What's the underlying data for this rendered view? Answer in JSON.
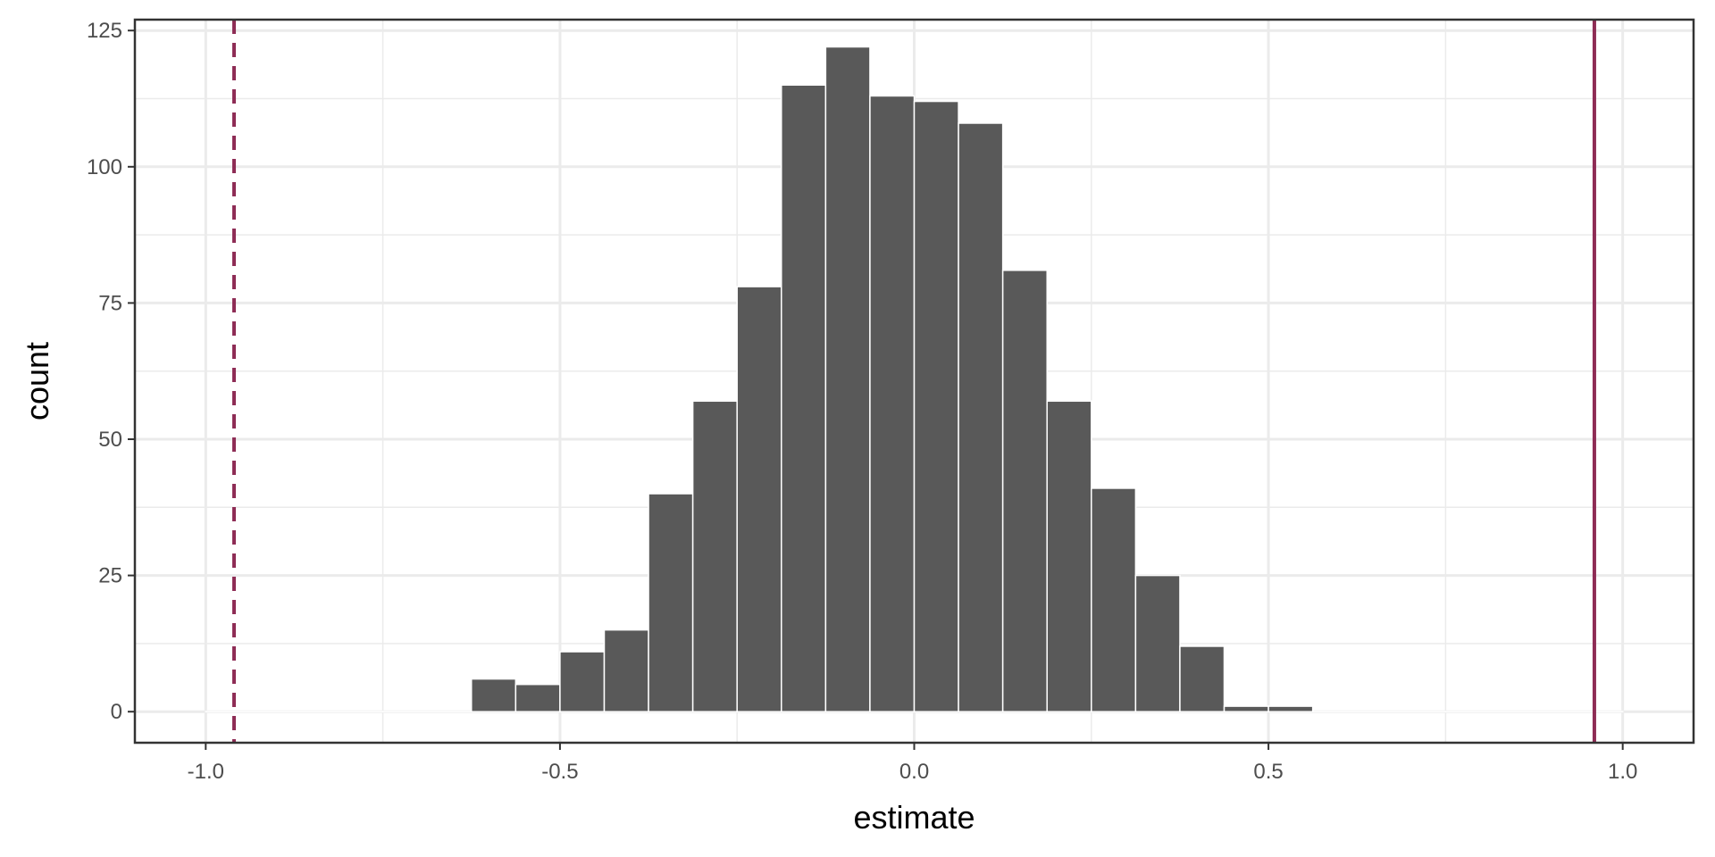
{
  "chart_data": {
    "type": "bar",
    "title": "",
    "xlabel": "estimate",
    "ylabel": "count",
    "xlim": [
      -1.1,
      1.1
    ],
    "ylim": [
      -5.7,
      127
    ],
    "x_ticks": [
      -1.0,
      -0.5,
      0.0,
      0.5,
      1.0
    ],
    "x_tick_labels": [
      "-1.0",
      "-0.5",
      "0.0",
      "0.5",
      "1.0"
    ],
    "y_ticks": [
      0,
      25,
      50,
      75,
      100,
      125
    ],
    "y_tick_labels": [
      "0",
      "25",
      "50",
      "75",
      "100",
      "125"
    ],
    "grid": true,
    "bins": [
      {
        "x0": -1.0,
        "x1": -0.9375,
        "count": 0
      },
      {
        "x0": -0.9375,
        "x1": -0.875,
        "count": 0
      },
      {
        "x0": -0.875,
        "x1": -0.8125,
        "count": 0
      },
      {
        "x0": -0.8125,
        "x1": -0.75,
        "count": 0
      },
      {
        "x0": -0.75,
        "x1": -0.6875,
        "count": 0
      },
      {
        "x0": -0.6875,
        "x1": -0.625,
        "count": 0
      },
      {
        "x0": -0.625,
        "x1": -0.5625,
        "count": 6
      },
      {
        "x0": -0.5625,
        "x1": -0.5,
        "count": 5
      },
      {
        "x0": -0.5,
        "x1": -0.4375,
        "count": 11
      },
      {
        "x0": -0.4375,
        "x1": -0.375,
        "count": 15
      },
      {
        "x0": -0.375,
        "x1": -0.3125,
        "count": 40
      },
      {
        "x0": -0.3125,
        "x1": -0.25,
        "count": 57
      },
      {
        "x0": -0.25,
        "x1": -0.1875,
        "count": 78
      },
      {
        "x0": -0.1875,
        "x1": -0.125,
        "count": 115
      },
      {
        "x0": -0.125,
        "x1": -0.0625,
        "count": 122
      },
      {
        "x0": -0.0625,
        "x1": 0.0,
        "count": 113
      },
      {
        "x0": 0.0,
        "x1": 0.0625,
        "count": 112
      },
      {
        "x0": 0.0625,
        "x1": 0.125,
        "count": 108
      },
      {
        "x0": 0.125,
        "x1": 0.1875,
        "count": 81
      },
      {
        "x0": 0.1875,
        "x1": 0.25,
        "count": 57
      },
      {
        "x0": 0.25,
        "x1": 0.3125,
        "count": 41
      },
      {
        "x0": 0.3125,
        "x1": 0.375,
        "count": 25
      },
      {
        "x0": 0.375,
        "x1": 0.4375,
        "count": 12
      },
      {
        "x0": 0.4375,
        "x1": 0.5,
        "count": 1
      },
      {
        "x0": 0.5,
        "x1": 0.5625,
        "count": 1
      },
      {
        "x0": 0.5625,
        "x1": 0.625,
        "count": 0
      },
      {
        "x0": 0.625,
        "x1": 0.6875,
        "count": 0
      },
      {
        "x0": 0.6875,
        "x1": 0.75,
        "count": 0
      },
      {
        "x0": 0.75,
        "x1": 0.8125,
        "count": 0
      },
      {
        "x0": 0.8125,
        "x1": 0.875,
        "count": 0
      },
      {
        "x0": 0.875,
        "x1": 0.9375,
        "count": 0
      },
      {
        "x0": 0.9375,
        "x1": 1.0,
        "count": 0
      }
    ],
    "reference_lines": [
      {
        "x": -0.96,
        "style": "dashed",
        "color": "#8e2c55"
      },
      {
        "x": 0.96,
        "style": "solid",
        "color": "#8e2c55"
      }
    ],
    "colors": {
      "bar_fill": "#595959",
      "bar_outline": "#ffffff",
      "reference_line": "#8e2c55",
      "grid": "#ebebeb",
      "panel_border": "#333333"
    }
  }
}
